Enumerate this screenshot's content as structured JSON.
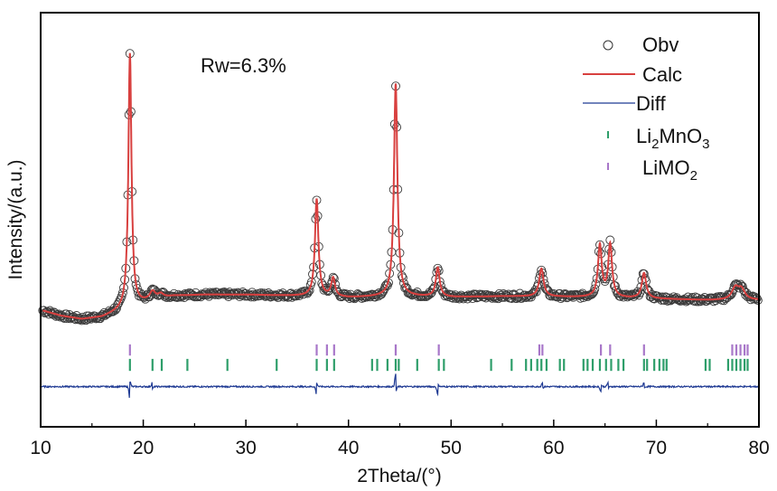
{
  "chart_data": {
    "type": "line",
    "title": "",
    "xlabel": "2Theta/(°)",
    "ylabel": "Intensity/(a.u.)",
    "xlim": [
      10,
      80
    ],
    "ylim": [
      0,
      100
    ],
    "x_ticks": [
      10,
      20,
      30,
      40,
      50,
      60,
      70,
      80
    ],
    "y_ticks_shown": false,
    "grid": false,
    "annotation": "Rw=6.3%",
    "legend_position": "top-right",
    "legend": [
      {
        "label": "Obv",
        "marker": "open-circle",
        "color": "#333333"
      },
      {
        "label": "Calc",
        "marker": "line",
        "color": "#d8403f"
      },
      {
        "label": "Diff",
        "marker": "line",
        "color": "#1f3a93"
      },
      {
        "label": "Li",
        "sub1": "2",
        "mid": "MnO",
        "sub2": "3",
        "marker": "tick",
        "color": "#2e9e6a"
      },
      {
        "label": "LiMO",
        "sub1": "2",
        "mid": "",
        "sub2": "",
        "marker": "tick",
        "color": "#a877c9"
      }
    ],
    "background": [
      [
        10,
        28.2
      ],
      [
        12,
        26.8
      ],
      [
        14,
        26.0
      ],
      [
        16,
        26.5
      ],
      [
        17.5,
        27.8
      ],
      [
        19.5,
        29.5
      ],
      [
        21,
        30.8
      ],
      [
        23,
        31.6
      ],
      [
        26,
        31.9
      ],
      [
        30,
        31.9
      ],
      [
        35,
        31.6
      ],
      [
        40,
        31.2
      ],
      [
        45,
        31.5
      ],
      [
        50,
        31.3
      ],
      [
        55,
        31.5
      ],
      [
        60,
        31.4
      ],
      [
        65,
        31.2
      ],
      [
        70,
        30.9
      ],
      [
        75,
        30.6
      ],
      [
        80,
        30.6
      ]
    ],
    "peaks": [
      {
        "position": 18.7,
        "intensity": 90.2,
        "width": 0.18
      },
      {
        "position": 20.9,
        "intensity": 32.5,
        "width": 0.3
      },
      {
        "position": 21.7,
        "intensity": 32.0,
        "width": 0.3
      },
      {
        "position": 36.9,
        "intensity": 55.0,
        "width": 0.2
      },
      {
        "position": 38.5,
        "intensity": 35.8,
        "width": 0.22
      },
      {
        "position": 44.6,
        "intensity": 82.8,
        "width": 0.2
      },
      {
        "position": 48.7,
        "intensity": 38.4,
        "width": 0.22
      },
      {
        "position": 58.8,
        "intensity": 38.2,
        "width": 0.25
      },
      {
        "position": 64.5,
        "intensity": 43.7,
        "width": 0.22
      },
      {
        "position": 65.5,
        "intensity": 43.9,
        "width": 0.22
      },
      {
        "position": 68.8,
        "intensity": 37.1,
        "width": 0.25
      },
      {
        "position": 77.7,
        "intensity": 33.4,
        "width": 0.4
      },
      {
        "position": 78.3,
        "intensity": 33.0,
        "width": 0.4
      }
    ],
    "reflections": {
      "LiMO2": [
        18.7,
        36.9,
        37.9,
        38.6,
        44.6,
        48.8,
        58.6,
        58.9,
        64.6,
        65.5,
        68.8,
        77.4,
        77.8,
        78.2,
        78.6,
        78.9
      ],
      "Li2MnO3": [
        18.7,
        20.9,
        21.8,
        24.3,
        28.2,
        33.0,
        36.9,
        37.9,
        38.6,
        42.3,
        42.8,
        43.8,
        44.6,
        44.9,
        46.7,
        48.8,
        49.3,
        53.9,
        55.9,
        57.3,
        57.8,
        58.4,
        58.8,
        59.3,
        60.6,
        61.0,
        62.9,
        63.3,
        63.8,
        64.5,
        65.1,
        65.6,
        66.3,
        66.8,
        68.8,
        69.1,
        69.8,
        70.3,
        70.7,
        71.0,
        74.8,
        75.2,
        77.0,
        77.4,
        77.8,
        78.2,
        78.6,
        78.9
      ]
    },
    "diff_features": [
      {
        "position": 18.7,
        "amplitude": -3.0
      },
      {
        "position": 20.9,
        "amplitude": 1.2
      },
      {
        "position": 36.9,
        "amplitude": -2.0
      },
      {
        "position": 44.6,
        "amplitude": 3.0
      },
      {
        "position": 48.7,
        "amplitude": -2.0
      },
      {
        "position": 58.9,
        "amplitude": 1.0
      },
      {
        "position": 64.6,
        "amplitude": -1.2
      },
      {
        "position": 65.3,
        "amplitude": 1.0
      },
      {
        "position": 68.8,
        "amplitude": 1.0
      }
    ],
    "diff_offset": 9.7
  }
}
